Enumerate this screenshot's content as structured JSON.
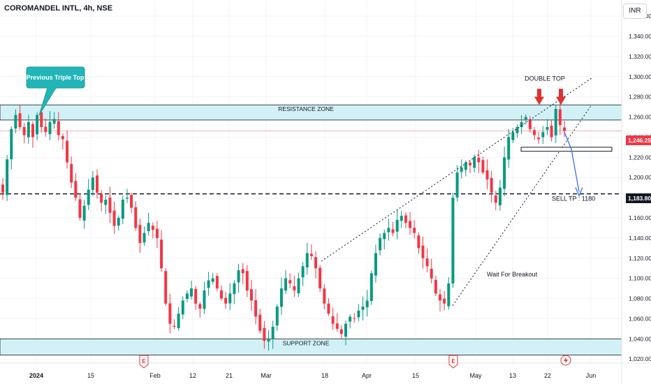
{
  "header": {
    "title": "COROMANDEL INTL, 4h, NSE",
    "currency": "INR"
  },
  "price_tags": {
    "last": "1,246.25",
    "target": "1,183.80"
  },
  "annotations": {
    "callout": "Previous Triple Top",
    "resistance": "RESISTANCE ZONE",
    "support": "SUPPORT ZONE",
    "double_top": "DOUBLE TOP",
    "sell_tp": "SELL TP : 1180",
    "wait": "Wait For Breakout"
  },
  "event_icons": [
    "E",
    "E",
    "lightning"
  ],
  "colors": {
    "up": "#089981",
    "down": "#f23645",
    "zone": "#d2f1f6",
    "callout": "#22b5b8",
    "arrow_red": "#e03131",
    "projection": "#2962ff"
  },
  "chart_data": {
    "type": "candlestick",
    "title": "COROMANDEL INTL, 4h, NSE",
    "ylim": [
      1016,
      1376
    ],
    "y_ticks": [
      "1,020.00",
      "1,040.00",
      "1,060.00",
      "1,080.00",
      "1,100.00",
      "1,120.00",
      "1,140.00",
      "1,160.00",
      "1,180.00",
      "1,200.00",
      "1,220.00",
      "1,240.00",
      "1,260.00",
      "1,280.00",
      "1,300.00",
      "1,320.00",
      "1,340.00",
      "1,360.00"
    ],
    "y_tick_values": [
      1020,
      1040,
      1060,
      1080,
      1100,
      1120,
      1140,
      1160,
      1180,
      1200,
      1220,
      1240,
      1260,
      1280,
      1300,
      1320,
      1340,
      1360
    ],
    "x_ticks": [
      "2024",
      "15",
      "Feb",
      "12",
      "21",
      "Mar",
      "18",
      "Apr",
      "15",
      "May",
      "13",
      "22",
      "Jun"
    ],
    "resistance_zone": [
      1257,
      1272
    ],
    "support_zone": [
      1024,
      1040
    ],
    "target_level": 1183.8,
    "last_price": 1246.25,
    "closes": [
      1185,
      1218,
      1248,
      1262,
      1250,
      1242,
      1255,
      1240,
      1262,
      1250,
      1245,
      1255,
      1258,
      1242,
      1238,
      1215,
      1195,
      1180,
      1160,
      1172,
      1188,
      1200,
      1185,
      1175,
      1178,
      1165,
      1152,
      1160,
      1178,
      1180,
      1170,
      1150,
      1135,
      1145,
      1155,
      1148,
      1140,
      1110,
      1075,
      1055,
      1052,
      1065,
      1078,
      1085,
      1090,
      1075,
      1070,
      1088,
      1098,
      1100,
      1090,
      1080,
      1075,
      1085,
      1095,
      1108,
      1105,
      1088,
      1078,
      1062,
      1048,
      1038,
      1040,
      1052,
      1072,
      1090,
      1100,
      1095,
      1088,
      1100,
      1112,
      1125,
      1122,
      1110,
      1090,
      1075,
      1065,
      1055,
      1050,
      1045,
      1055,
      1062,
      1060,
      1068,
      1072,
      1078,
      1105,
      1125,
      1140,
      1145,
      1150,
      1145,
      1158,
      1162,
      1155,
      1150,
      1145,
      1130,
      1120,
      1112,
      1100,
      1085,
      1078,
      1075,
      1095,
      1180,
      1205,
      1210,
      1215,
      1212,
      1220,
      1215,
      1205,
      1198,
      1185,
      1175,
      1190,
      1220,
      1240,
      1245,
      1250,
      1255,
      1260,
      1248,
      1242,
      1238,
      1245,
      1250,
      1240,
      1268,
      1252,
      1246
    ]
  }
}
